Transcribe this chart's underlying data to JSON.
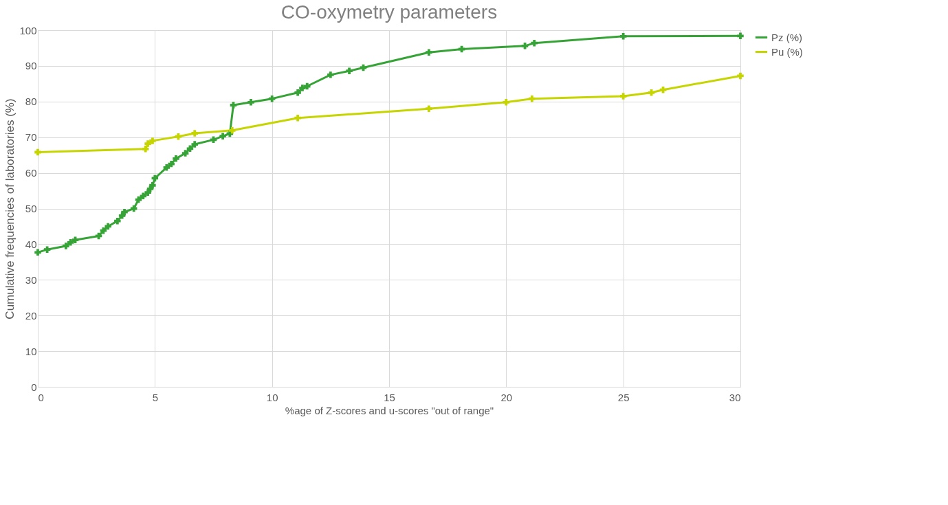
{
  "chart_data": {
    "type": "line",
    "title": "CO-oxymetry parameters",
    "xlabel": "%age of Z-scores and u-scores \"out of range\"",
    "ylabel": "Cumulative frequencies of laboratories (%)",
    "xlim": [
      0,
      30
    ],
    "xticks": [
      0,
      5,
      10,
      15,
      20,
      25,
      30
    ],
    "ylim": [
      0,
      100
    ],
    "yticks": [
      0,
      10,
      20,
      30,
      40,
      50,
      60,
      70,
      80,
      90,
      100
    ],
    "grid": true,
    "legend": "right",
    "marker": "cross",
    "line_style": "solid",
    "series": [
      {
        "name": "Pz (%)",
        "color": "#36a336",
        "x": [
          0,
          0.4,
          1.2,
          1.4,
          1.6,
          2.6,
          2.8,
          3,
          3.4,
          3.6,
          3.7,
          4.1,
          4.3,
          4.5,
          4.7,
          4.8,
          4.9,
          5,
          5.5,
          5.7,
          5.9,
          6.3,
          6.5,
          6.7,
          7.5,
          7.9,
          8.2,
          8.35,
          9.1,
          10,
          11.1,
          11.3,
          11.5,
          12.5,
          13.3,
          13.9,
          16.7,
          18.1,
          20.8,
          21.2,
          25,
          30
        ],
        "values": [
          37.7,
          38.5,
          39.5,
          40.5,
          41.2,
          42.3,
          43.8,
          45,
          46.5,
          48,
          49,
          50,
          52.5,
          53.5,
          54.5,
          55.5,
          56.5,
          58.5,
          61.5,
          62.5,
          64,
          65.5,
          66.8,
          68,
          69.3,
          70.3,
          71,
          79,
          79.8,
          80.8,
          82.5,
          83.8,
          84.3,
          87.5,
          88.6,
          89.5,
          93.8,
          94.7,
          95.6,
          96.4,
          98.3,
          98.4
        ]
      },
      {
        "name": "Pu (%)",
        "color": "#c6d400",
        "x": [
          0,
          4.6,
          4.7,
          4.9,
          6,
          6.7,
          8.3,
          11.1,
          16.7,
          20,
          21.1,
          25,
          26.2,
          26.7,
          30
        ],
        "values": [
          65.8,
          66.7,
          68.2,
          69,
          70.2,
          71.1,
          71.9,
          75.4,
          78,
          79.8,
          80.8,
          81.5,
          82.5,
          83.3,
          87.2
        ]
      }
    ]
  }
}
